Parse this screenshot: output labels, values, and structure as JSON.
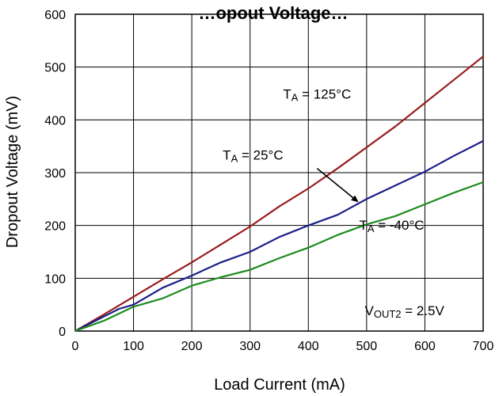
{
  "chart_data": {
    "type": "line",
    "title": "…opout Voltage…",
    "xlabel": "Load Current (mA)",
    "ylabel": "Dropout Voltage (mV)",
    "xlim": [
      0,
      700
    ],
    "ylim": [
      0,
      600
    ],
    "x_ticks": [
      0,
      100,
      200,
      300,
      400,
      500,
      600,
      700
    ],
    "y_ticks": [
      0,
      100,
      200,
      300,
      400,
      500,
      600
    ],
    "grid": true,
    "legend": "none (inline annotations)",
    "series": [
      {
        "color": "#9b1b1b",
        "x": [
          0,
          50,
          100,
          150,
          200,
          250,
          300,
          350,
          400,
          450,
          500,
          550,
          600,
          650,
          700
        ],
        "values": [
          0,
          32,
          65,
          98,
          130,
          164,
          198,
          236,
          270,
          308,
          348,
          388,
          432,
          476,
          520
        ]
      },
      {
        "color": "#1b1f8a",
        "x": [
          0,
          50,
          75,
          100,
          150,
          200,
          250,
          300,
          350,
          400,
          450,
          500,
          550,
          600,
          650,
          700
        ],
        "values": [
          0,
          28,
          42,
          50,
          82,
          105,
          130,
          150,
          178,
          200,
          220,
          250,
          276,
          302,
          332,
          360
        ]
      },
      {
        "color": "#1e8c1e",
        "x": [
          0,
          50,
          100,
          150,
          200,
          250,
          300,
          350,
          400,
          450,
          500,
          550,
          600,
          650,
          700
        ],
        "values": [
          0,
          20,
          46,
          62,
          86,
          102,
          116,
          138,
          158,
          182,
          202,
          218,
          240,
          262,
          282
        ]
      }
    ],
    "annotations": {
      "t125": {
        "main": "T",
        "sub": "A",
        "rest": " = 125°C",
        "x": 415,
        "y": 440
      },
      "t25": {
        "main": "T",
        "sub": "A",
        "rest": " = 25°C",
        "x": 305,
        "y": 325
      },
      "tm40": {
        "main": "T",
        "sub": "A",
        "rest": " = -40°C",
        "x": 543,
        "y": 192
      },
      "vout": {
        "main": "V",
        "sub": "OUT2",
        "rest": " =  2.5V",
        "x": 565,
        "y": 30
      }
    },
    "arrow": {
      "from": [
        415,
        308
      ],
      "to": [
        485,
        245
      ]
    }
  }
}
